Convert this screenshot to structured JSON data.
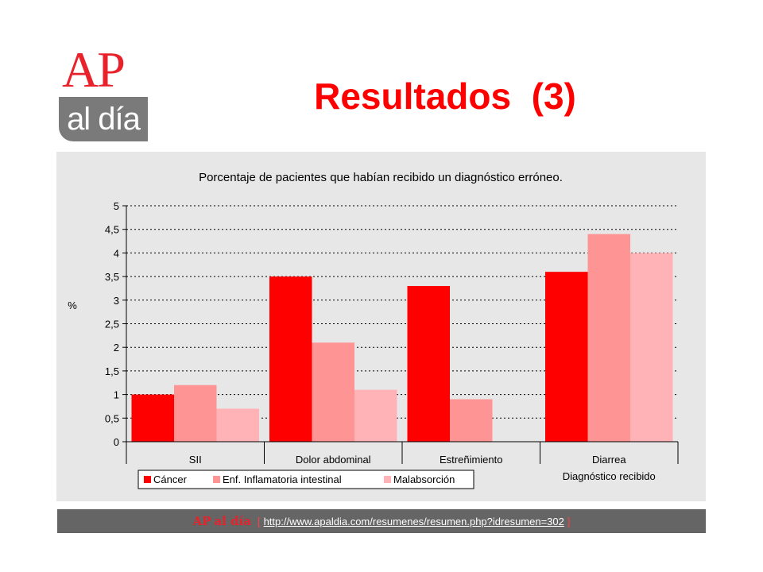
{
  "colors": {
    "brand_red": "#e8212b",
    "logo_gray": "#7a7a7a",
    "title_red": "#ff0000",
    "chart_background": "#e7e7e7",
    "footer_bg": "#656565"
  },
  "logo": {
    "main": "AP",
    "sub": "al día"
  },
  "slide": {
    "title": "Resultados  (3)"
  },
  "footer": {
    "brand_part1": "AP",
    "brand_part2": "al día",
    "bracket_open": "[",
    "bracket_close": "]",
    "url": "http://www.apaldia.com/resumenes/resumen.php?idresumen=302"
  },
  "chart_data": {
    "type": "bar",
    "title": "Porcentaje de pacientes que habían recibido un diagnóstico erróneo.",
    "ylabel": "%",
    "xlabel": "Diagnóstico recibido",
    "categories": [
      "SII",
      "Dolor abdominal",
      "Estreñimiento",
      "Diarrea"
    ],
    "series": [
      {
        "name": "Cáncer",
        "color": "#ff0000",
        "values": [
          1.0,
          3.5,
          3.3,
          3.6
        ]
      },
      {
        "name": "Enf. Inflamatoria intestinal",
        "color": "#ff9494",
        "values": [
          1.2,
          2.1,
          0.9,
          4.4
        ]
      },
      {
        "name": "Malabsorción",
        "color": "#ffb3b7",
        "values": [
          0.7,
          1.1,
          null,
          4.0
        ]
      }
    ],
    "yticks": [
      "0",
      "0,5",
      "1",
      "1,5",
      "2",
      "2,5",
      "3",
      "3,5",
      "4",
      "4,5",
      "5"
    ],
    "ylim": [
      0,
      5
    ],
    "grid": true,
    "legend": "bottom-left"
  }
}
